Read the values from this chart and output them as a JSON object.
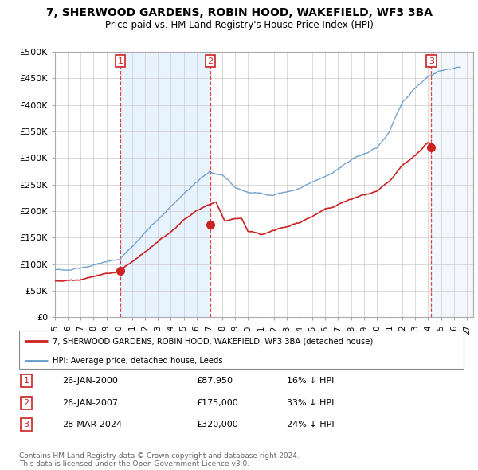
{
  "title": "7, SHERWOOD GARDENS, ROBIN HOOD, WAKEFIELD, WF3 3BA",
  "subtitle": "Price paid vs. HM Land Registry's House Price Index (HPI)",
  "hpi_color": "#6699cc",
  "price_color": "#cc2222",
  "sales": [
    {
      "year": 2000.08,
      "price": 87950,
      "label": "1"
    },
    {
      "year": 2007.07,
      "price": 175000,
      "label": "2"
    },
    {
      "year": 2024.25,
      "price": 320000,
      "label": "3"
    }
  ],
  "xlim_start": 1995.0,
  "xlim_end": 2027.5,
  "ylim": [
    0,
    500000
  ],
  "yticks": [
    0,
    50000,
    100000,
    150000,
    200000,
    250000,
    300000,
    350000,
    400000,
    450000,
    500000
  ],
  "ytick_labels": [
    "£0",
    "£50K",
    "£100K",
    "£150K",
    "£200K",
    "£250K",
    "£300K",
    "£350K",
    "£400K",
    "£450K",
    "£500K"
  ],
  "xticks": [
    1995,
    1996,
    1997,
    1998,
    1999,
    2000,
    2001,
    2002,
    2003,
    2004,
    2005,
    2006,
    2007,
    2008,
    2009,
    2010,
    2011,
    2012,
    2013,
    2014,
    2015,
    2016,
    2017,
    2018,
    2019,
    2020,
    2021,
    2022,
    2023,
    2024,
    2025,
    2026,
    2027
  ],
  "blue_shade_start": 2000.08,
  "blue_shade_end": 2007.07,
  "future_start": 2024.25,
  "legend_house_label": "7, SHERWOOD GARDENS, ROBIN HOOD, WAKEFIELD, WF3 3BA (detached house)",
  "legend_hpi_label": "HPI: Average price, detached house, Leeds",
  "table_rows": [
    {
      "num": "1",
      "date": "26-JAN-2000",
      "price": "£87,950",
      "hpi": "16% ↓ HPI"
    },
    {
      "num": "2",
      "date": "26-JAN-2007",
      "price": "£175,000",
      "hpi": "33% ↓ HPI"
    },
    {
      "num": "3",
      "date": "28-MAR-2024",
      "price": "£320,000",
      "hpi": "24% ↓ HPI"
    }
  ],
  "footer": "Contains HM Land Registry data © Crown copyright and database right 2024.\nThis data is licensed under the Open Government Licence v3.0."
}
